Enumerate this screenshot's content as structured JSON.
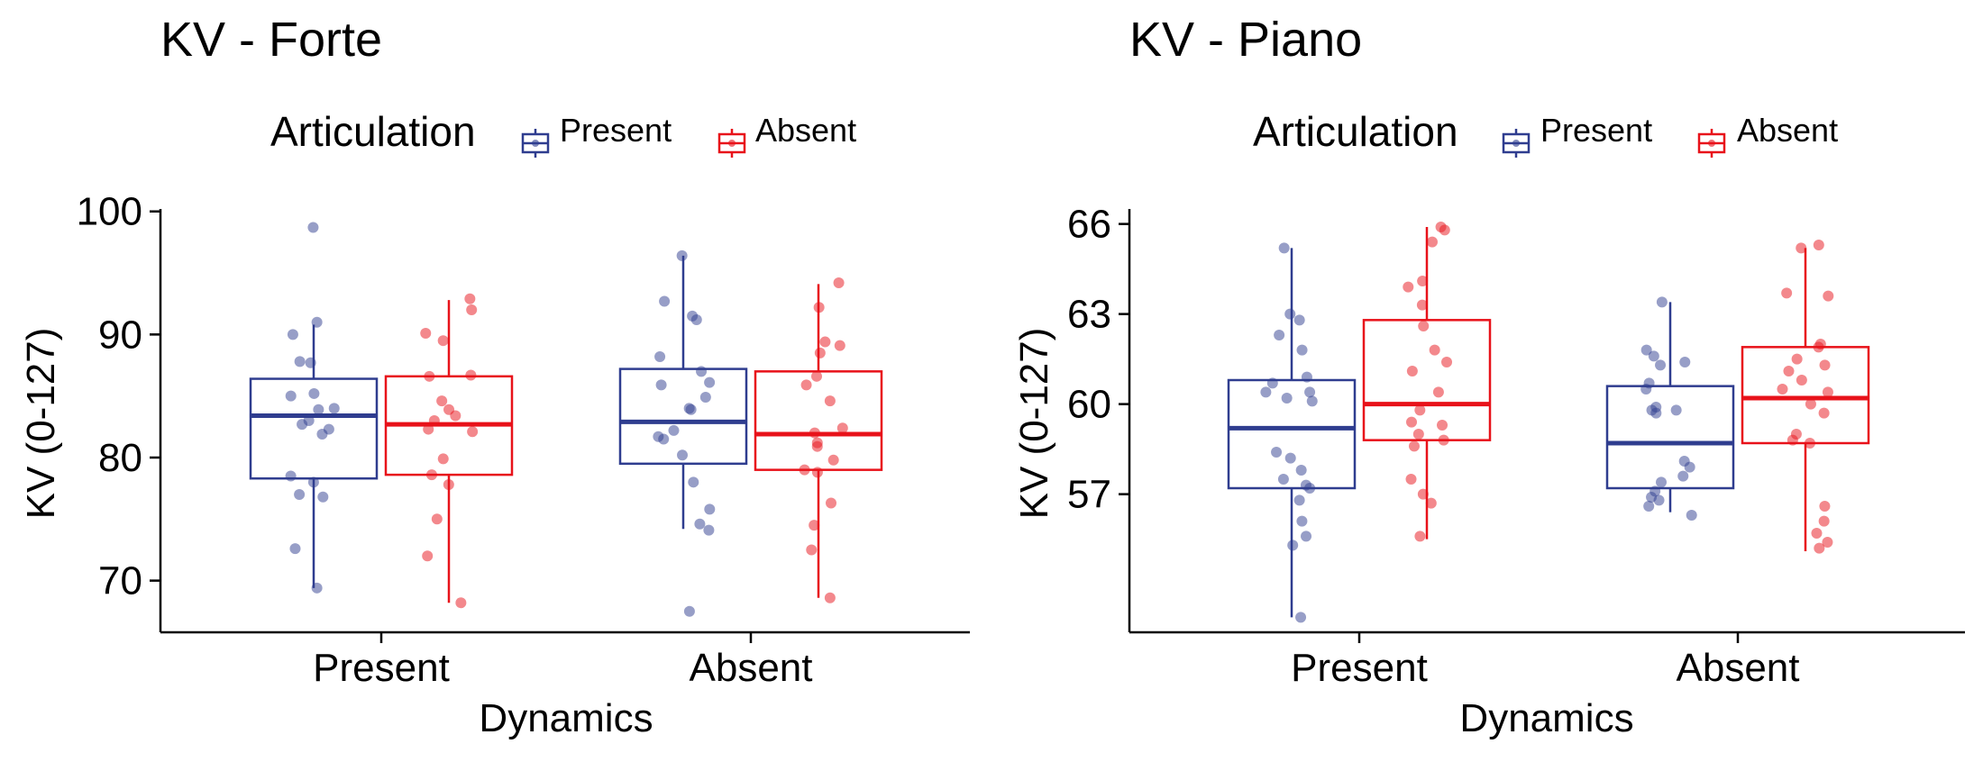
{
  "colors": {
    "present": "#2f3d8f",
    "absent": "#e8121a"
  },
  "legend": {
    "title": "Articulation",
    "entries": [
      {
        "key": "present",
        "label": "Present"
      },
      {
        "key": "absent",
        "label": "Absent"
      }
    ]
  },
  "chart_data": [
    {
      "type": "boxplot",
      "title": "KV - Forte",
      "xlabel": "Dynamics",
      "ylabel": "KV (0-127)",
      "categories": [
        "Present",
        "Absent"
      ],
      "ylim": [
        65.8,
        100.2
      ],
      "yticks": [
        70,
        80,
        90,
        100
      ],
      "legend_position": "top",
      "grid": false,
      "groups": [
        {
          "dynamics": "Present",
          "boxes": [
            {
              "articulation": "Present",
              "lower_whisker": 69.4,
              "q1": 78.3,
              "median": 83.4,
              "q3": 86.4,
              "upper_whisker": 90.8,
              "points": [
                98.7,
                91.0,
                90.0,
                87.8,
                87.7,
                85.2,
                85.0,
                84.0,
                83.9,
                83.0,
                82.7,
                82.3,
                81.9,
                78.5,
                78.0,
                77.0,
                76.8,
                72.6,
                69.4
              ]
            },
            {
              "articulation": "Absent",
              "lower_whisker": 68.2,
              "q1": 78.6,
              "median": 82.7,
              "q3": 86.6,
              "upper_whisker": 92.8,
              "points": [
                92.9,
                92.0,
                90.1,
                89.5,
                86.7,
                86.6,
                84.6,
                83.9,
                83.4,
                83.0,
                82.3,
                82.1,
                79.9,
                78.6,
                77.8,
                75.0,
                72.0,
                68.2
              ]
            }
          ]
        },
        {
          "dynamics": "Absent",
          "boxes": [
            {
              "articulation": "Present",
              "lower_whisker": 74.2,
              "q1": 79.5,
              "median": 82.9,
              "q3": 87.2,
              "upper_whisker": 96.4,
              "points": [
                96.4,
                92.7,
                91.5,
                91.2,
                88.2,
                87.0,
                86.1,
                85.9,
                84.9,
                84.0,
                83.9,
                82.2,
                81.7,
                81.5,
                80.2,
                78.0,
                75.8,
                74.6,
                74.1,
                67.5
              ]
            },
            {
              "articulation": "Absent",
              "lower_whisker": 68.6,
              "q1": 79.0,
              "median": 81.9,
              "q3": 87.0,
              "upper_whisker": 94.1,
              "points": [
                94.2,
                92.2,
                89.4,
                89.1,
                88.5,
                86.6,
                85.9,
                84.6,
                82.4,
                82.0,
                81.2,
                80.9,
                79.8,
                79.0,
                78.8,
                76.3,
                74.5,
                72.5,
                68.6
              ]
            }
          ]
        }
      ]
    },
    {
      "type": "boxplot",
      "title": "KV - Piano",
      "xlabel": "Dynamics",
      "ylabel": "KV (0-127)",
      "categories": [
        "Present",
        "Absent"
      ],
      "ylim": [
        52.4,
        66.5
      ],
      "yticks": [
        57,
        60,
        63,
        66
      ],
      "legend_position": "top",
      "grid": false,
      "groups": [
        {
          "dynamics": "Present",
          "boxes": [
            {
              "articulation": "Present",
              "lower_whisker": 52.9,
              "q1": 57.2,
              "median": 59.2,
              "q3": 60.8,
              "upper_whisker": 65.2,
              "points": [
                65.2,
                63.0,
                62.8,
                62.3,
                61.8,
                60.9,
                60.7,
                60.4,
                60.4,
                60.2,
                60.1,
                58.4,
                58.2,
                57.8,
                57.5,
                57.3,
                57.2,
                56.8,
                56.1,
                55.6,
                55.3,
                52.9
              ]
            },
            {
              "articulation": "Absent",
              "lower_whisker": 55.5,
              "q1": 58.8,
              "median": 60.0,
              "q3": 62.8,
              "upper_whisker": 65.9,
              "points": [
                65.9,
                65.8,
                65.4,
                64.1,
                63.9,
                63.3,
                62.6,
                61.8,
                61.4,
                61.1,
                60.4,
                59.8,
                59.4,
                59.3,
                59.0,
                58.8,
                58.6,
                57.5,
                57.0,
                56.7,
                55.6
              ]
            }
          ]
        },
        {
          "dynamics": "Absent",
          "boxes": [
            {
              "articulation": "Present",
              "lower_whisker": 56.4,
              "q1": 57.2,
              "median": 58.7,
              "q3": 60.6,
              "upper_whisker": 63.4,
              "points": [
                63.4,
                61.8,
                61.6,
                61.4,
                61.3,
                60.7,
                60.5,
                59.9,
                59.8,
                59.8,
                59.7,
                58.1,
                57.9,
                57.6,
                57.4,
                57.1,
                56.9,
                56.8,
                56.6,
                56.3
              ]
            },
            {
              "articulation": "Absent",
              "lower_whisker": 55.1,
              "q1": 58.7,
              "median": 60.2,
              "q3": 61.9,
              "upper_whisker": 65.2,
              "points": [
                65.3,
                65.2,
                63.7,
                63.6,
                62.0,
                61.9,
                61.5,
                61.3,
                61.1,
                60.8,
                60.5,
                60.4,
                60.0,
                59.7,
                59.0,
                58.8,
                58.7,
                56.6,
                56.1,
                55.7,
                55.4,
                55.2
              ]
            }
          ]
        }
      ]
    }
  ]
}
